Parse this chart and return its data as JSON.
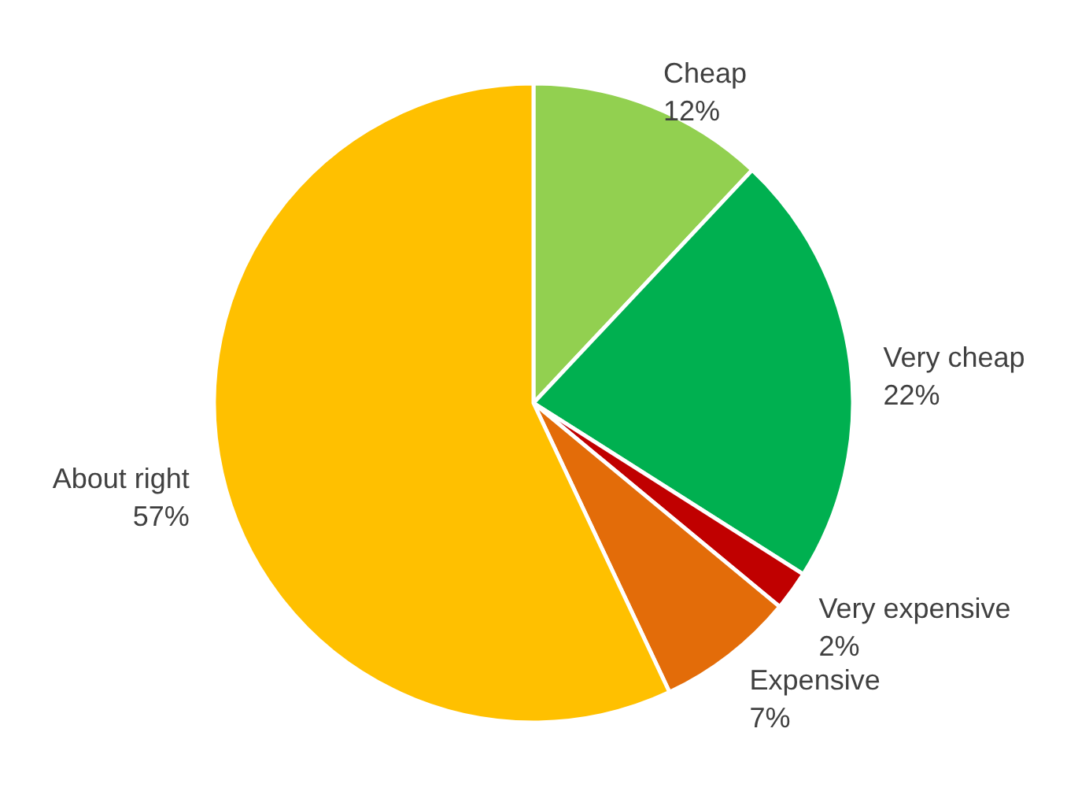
{
  "chart_data": {
    "type": "pie",
    "categories": [
      "Cheap",
      "Very cheap",
      "Very expensive",
      "Expensive",
      "About right"
    ],
    "values": [
      12,
      22,
      2,
      7,
      57
    ],
    "colors": [
      "#92d050",
      "#00b050",
      "#c00000",
      "#e36c09",
      "#ffc000"
    ],
    "value_labels": [
      "12%",
      "22%",
      "2%",
      "7%",
      "57%"
    ]
  }
}
